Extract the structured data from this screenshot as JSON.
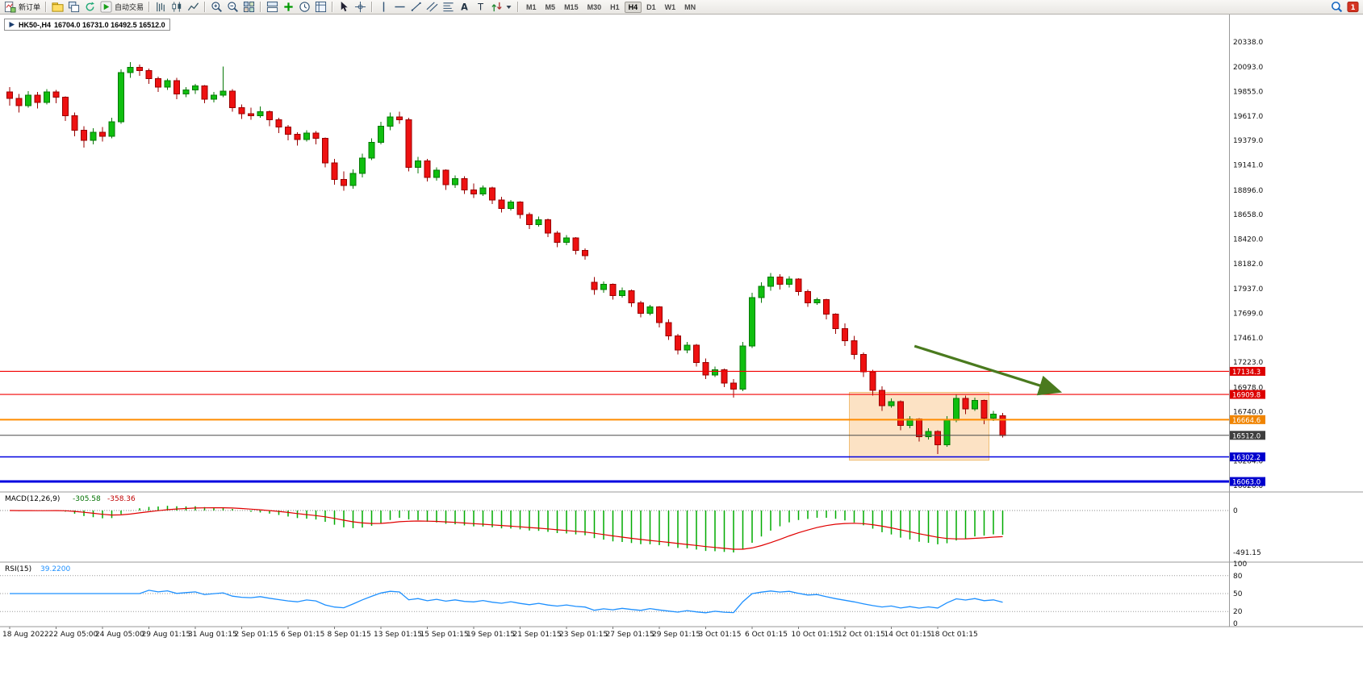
{
  "window": {
    "title_tab": {
      "symbol_period": "HK50-,H4",
      "ohlc": "16704.0 16731.0 16492.5 16512.0"
    }
  },
  "toolbar": {
    "items": [
      {
        "type": "button",
        "name": "new-order-button",
        "icon": "doc-chart",
        "label": "新订单"
      },
      {
        "type": "sep"
      },
      {
        "type": "button",
        "name": "profiles-button",
        "icon": "profiles"
      },
      {
        "type": "button",
        "name": "data-window-button",
        "icon": "cascade"
      },
      {
        "type": "button",
        "name": "refresh-button",
        "icon": "refresh"
      },
      {
        "type": "button",
        "name": "auto-trading-button",
        "icon": "autotrade",
        "label": "自动交易"
      },
      {
        "type": "sep"
      },
      {
        "type": "button",
        "name": "bar-chart-button",
        "icon": "chart-bars"
      },
      {
        "type": "button",
        "name": "candlestick-chart-button",
        "icon": "chart-candles"
      },
      {
        "type": "button",
        "name": "line-chart-button",
        "icon": "chart-line"
      },
      {
        "type": "sep"
      },
      {
        "type": "button",
        "name": "zoom-in-button",
        "icon": "zoom-in"
      },
      {
        "type": "button",
        "name": "zoom-out-button",
        "icon": "zoom-out"
      },
      {
        "type": "button",
        "name": "tile-windows-button",
        "icon": "tile"
      },
      {
        "type": "sep"
      },
      {
        "type": "button",
        "name": "auto-arrange-button",
        "icon": "arrange"
      },
      {
        "type": "button",
        "name": "indicators-button",
        "icon": "indicators"
      },
      {
        "type": "button",
        "name": "periods-button",
        "icon": "clock"
      },
      {
        "type": "button",
        "name": "templates-button",
        "icon": "template"
      },
      {
        "type": "sep"
      },
      {
        "type": "button",
        "name": "cursor-button",
        "icon": "cursor"
      },
      {
        "type": "button",
        "name": "crosshair-button",
        "icon": "crosshair"
      },
      {
        "type": "sep"
      },
      {
        "type": "button",
        "name": "vertical-line-button",
        "icon": "vline"
      },
      {
        "type": "button",
        "name": "horizontal-line-button",
        "icon": "hline"
      },
      {
        "type": "button",
        "name": "trendline-button",
        "icon": "trendline"
      },
      {
        "type": "button",
        "name": "channel-button",
        "icon": "channel"
      },
      {
        "type": "button",
        "name": "fibonacci-button",
        "icon": "fibo"
      },
      {
        "type": "button",
        "name": "text-button",
        "icon": "text"
      },
      {
        "type": "button",
        "name": "label-button",
        "icon": "label"
      },
      {
        "type": "button",
        "name": "arrows-button",
        "icon": "arrows",
        "caret": true
      },
      {
        "type": "sep"
      },
      {
        "type": "timeframes"
      },
      {
        "type": "spacer"
      },
      {
        "type": "button",
        "name": "search-button",
        "icon": "search"
      },
      {
        "type": "button",
        "name": "notification-button",
        "icon": "alert",
        "badge": "1"
      }
    ],
    "timeframes": [
      "M1",
      "M5",
      "M15",
      "M30",
      "H1",
      "H4",
      "D1",
      "W1",
      "MN"
    ],
    "active_timeframe": "H4"
  },
  "chart_data": {
    "type": "candlestick",
    "symbol": "HK50-",
    "period": "H4",
    "last_bar": {
      "open": 16704.0,
      "high": 16731.0,
      "low": 16492.5,
      "close": 16512.0
    },
    "colors": {
      "bull": "#0FBF0F",
      "bull_border": "#067806",
      "bear": "#EE1111",
      "bear_border": "#990000",
      "macd_hist": "#00AA00",
      "macd_signal": "#E00000",
      "rsi_line": "#1E90FF",
      "arrow": "#4a7a1e",
      "zone_fill": "#F5A64B",
      "zone_border": "#E8A33D"
    },
    "price_axis": [
      20338,
      20093,
      19855,
      19617,
      19379,
      19141,
      18896,
      18658,
      18420,
      18182,
      17937,
      17699,
      17461,
      17223,
      16978,
      16740,
      16502,
      16264,
      16026
    ],
    "hlines": [
      {
        "price": 17134.3,
        "label": "17134.3",
        "color": "#F20000",
        "width": 1.2,
        "tag_color": "#DD0000"
      },
      {
        "price": 16909.8,
        "label": "16909.8",
        "color": "#F20000",
        "width": 1.2,
        "tag_color": "#DD0000"
      },
      {
        "price": 16664.6,
        "label": "16664.6",
        "color": "#FF8C00",
        "width": 2,
        "tag_color": "#F08400"
      },
      {
        "price": 16512.0,
        "label": "16512.0",
        "color": "#4a4a4a",
        "width": 1,
        "tag_color": "#3F3F3F"
      },
      {
        "price": 16302.2,
        "label": "16302.2",
        "color": "#0000E0",
        "width": 1.5,
        "tag_color": "#0000CD"
      },
      {
        "price": 16063.0,
        "label": "16063.0",
        "color": "#0000E0",
        "width": 3,
        "tag_color": "#0000CD"
      }
    ],
    "zone": {
      "start_index": 91,
      "end_index": 105,
      "price_top": 16930,
      "price_bottom": 16270
    },
    "arrow": {
      "from": {
        "index": 97.5,
        "price": 17380
      },
      "to": {
        "index": 113,
        "price": 16940
      }
    },
    "macd": {
      "name": "MACD(12,26,9)",
      "main_value": "-305.58",
      "signal_value": "-358.36",
      "fast": 12,
      "slow": 26,
      "signal": 9,
      "axis_zero_label": "0",
      "axis_min_label": "-491.15"
    },
    "rsi": {
      "name": "RSI(15)",
      "value": "39.2200",
      "period": 15,
      "levels": [
        80,
        50,
        20
      ],
      "axis_labels": [
        "100",
        "80",
        "50",
        "20",
        "0"
      ]
    },
    "dates": [
      "18 Aug 2022",
      "22 Aug 05:00",
      "24 Aug 05:00",
      "29 Aug 01:15",
      "31 Aug 01:15",
      "2 Sep 01:15",
      "6 Sep 01:15",
      "8 Sep 01:15",
      "13 Sep 01:15",
      "15 Sep 01:15",
      "19 Sep 01:15",
      "21 Sep 01:15",
      "23 Sep 01:15",
      "27 Sep 01:15",
      "29 Sep 01:15",
      "3 Oct 01:15",
      "6 Oct 01:15",
      "10 Oct 01:15",
      "12 Oct 01:15",
      "14 Oct 01:15",
      "18 Oct 01:15"
    ],
    "candles": [
      [
        19850,
        19900,
        19720,
        19790
      ],
      [
        19790,
        19830,
        19650,
        19720
      ],
      [
        19720,
        19860,
        19700,
        19820
      ],
      [
        19820,
        19850,
        19690,
        19750
      ],
      [
        19750,
        19880,
        19730,
        19850
      ],
      [
        19850,
        19870,
        19740,
        19800
      ],
      [
        19800,
        19810,
        19570,
        19620
      ],
      [
        19620,
        19650,
        19420,
        19480
      ],
      [
        19480,
        19520,
        19310,
        19380
      ],
      [
        19380,
        19500,
        19340,
        19460
      ],
      [
        19460,
        19510,
        19370,
        19420
      ],
      [
        19420,
        19600,
        19400,
        19560
      ],
      [
        19560,
        20070,
        19540,
        20040
      ],
      [
        20040,
        20140,
        19990,
        20090
      ],
      [
        20090,
        20120,
        20010,
        20060
      ],
      [
        20060,
        20080,
        19930,
        19980
      ],
      [
        19980,
        20000,
        19850,
        19900
      ],
      [
        19900,
        19980,
        19870,
        19960
      ],
      [
        19960,
        19990,
        19780,
        19830
      ],
      [
        19830,
        19900,
        19800,
        19870
      ],
      [
        19870,
        19930,
        19830,
        19910
      ],
      [
        19910,
        19920,
        19740,
        19780
      ],
      [
        19780,
        19850,
        19750,
        19820
      ],
      [
        19820,
        20100,
        19800,
        19860
      ],
      [
        19860,
        19880,
        19660,
        19700
      ],
      [
        19700,
        19730,
        19590,
        19640
      ],
      [
        19640,
        19700,
        19580,
        19620
      ],
      [
        19620,
        19710,
        19600,
        19660
      ],
      [
        19660,
        19670,
        19520,
        19580
      ],
      [
        19580,
        19600,
        19450,
        19510
      ],
      [
        19510,
        19530,
        19380,
        19440
      ],
      [
        19440,
        19460,
        19330,
        19390
      ],
      [
        19390,
        19480,
        19370,
        19450
      ],
      [
        19450,
        19470,
        19340,
        19400
      ],
      [
        19400,
        19410,
        19120,
        19160
      ],
      [
        19160,
        19200,
        18950,
        19000
      ],
      [
        19000,
        19080,
        18890,
        18940
      ],
      [
        18940,
        19100,
        18910,
        19060
      ],
      [
        19060,
        19250,
        19020,
        19210
      ],
      [
        19210,
        19400,
        19190,
        19360
      ],
      [
        19360,
        19560,
        19340,
        19520
      ],
      [
        19520,
        19650,
        19480,
        19610
      ],
      [
        19610,
        19660,
        19540,
        19580
      ],
      [
        19580,
        19600,
        19080,
        19120
      ],
      [
        19120,
        19220,
        19060,
        19180
      ],
      [
        19180,
        19200,
        18980,
        19020
      ],
      [
        19020,
        19120,
        18990,
        19090
      ],
      [
        19090,
        19100,
        18900,
        18950
      ],
      [
        18950,
        19040,
        18920,
        19010
      ],
      [
        19010,
        19030,
        18860,
        18900
      ],
      [
        18900,
        18960,
        18820,
        18860
      ],
      [
        18860,
        18940,
        18840,
        18920
      ],
      [
        18920,
        18930,
        18760,
        18800
      ],
      [
        18800,
        18830,
        18680,
        18720
      ],
      [
        18720,
        18800,
        18700,
        18780
      ],
      [
        18780,
        18790,
        18620,
        18660
      ],
      [
        18660,
        18680,
        18520,
        18560
      ],
      [
        18560,
        18640,
        18540,
        18610
      ],
      [
        18610,
        18620,
        18440,
        18480
      ],
      [
        18480,
        18500,
        18340,
        18390
      ],
      [
        18390,
        18460,
        18360,
        18430
      ],
      [
        18430,
        18440,
        18270,
        18310
      ],
      [
        18310,
        18330,
        18220,
        18260
      ],
      [
        18000,
        18050,
        17880,
        17930
      ],
      [
        17930,
        18010,
        17900,
        17980
      ],
      [
        17980,
        17990,
        17830,
        17870
      ],
      [
        17870,
        17950,
        17850,
        17920
      ],
      [
        17920,
        17930,
        17760,
        17800
      ],
      [
        17800,
        17820,
        17660,
        17700
      ],
      [
        17700,
        17780,
        17680,
        17760
      ],
      [
        17760,
        17770,
        17560,
        17610
      ],
      [
        17610,
        17640,
        17440,
        17480
      ],
      [
        17480,
        17500,
        17300,
        17340
      ],
      [
        17340,
        17420,
        17310,
        17390
      ],
      [
        17390,
        17400,
        17180,
        17220
      ],
      [
        17220,
        17260,
        17060,
        17100
      ],
      [
        17100,
        17180,
        17080,
        17150
      ],
      [
        17150,
        17160,
        16980,
        17020
      ],
      [
        17020,
        17060,
        16880,
        16960
      ],
      [
        16960,
        17420,
        16940,
        17380
      ],
      [
        17380,
        17900,
        17360,
        17850
      ],
      [
        17850,
        18000,
        17800,
        17960
      ],
      [
        17960,
        18090,
        17920,
        18050
      ],
      [
        18050,
        18080,
        17930,
        17980
      ],
      [
        17980,
        18060,
        17950,
        18030
      ],
      [
        18030,
        18040,
        17870,
        17910
      ],
      [
        17910,
        17930,
        17760,
        17800
      ],
      [
        17800,
        17850,
        17780,
        17830
      ],
      [
        17830,
        17840,
        17640,
        17690
      ],
      [
        17690,
        17700,
        17500,
        17550
      ],
      [
        17550,
        17600,
        17380,
        17430
      ],
      [
        17430,
        17480,
        17250,
        17300
      ],
      [
        17300,
        17320,
        17080,
        17130
      ],
      [
        17130,
        17150,
        16900,
        16950
      ],
      [
        16950,
        16990,
        16750,
        16800
      ],
      [
        16800,
        16870,
        16780,
        16840
      ],
      [
        16840,
        16850,
        16560,
        16610
      ],
      [
        16610,
        16700,
        16580,
        16670
      ],
      [
        16670,
        16680,
        16450,
        16500
      ],
      [
        16500,
        16580,
        16470,
        16550
      ],
      [
        16550,
        16560,
        16330,
        16420
      ],
      [
        16420,
        16700,
        16400,
        16660
      ],
      [
        16660,
        16910,
        16640,
        16870
      ],
      [
        16870,
        16900,
        16720,
        16770
      ],
      [
        16770,
        16880,
        16750,
        16850
      ],
      [
        16850,
        16860,
        16620,
        16680
      ],
      [
        16680,
        16750,
        16650,
        16720
      ],
      [
        16704,
        16731,
        16492.5,
        16512
      ]
    ]
  }
}
